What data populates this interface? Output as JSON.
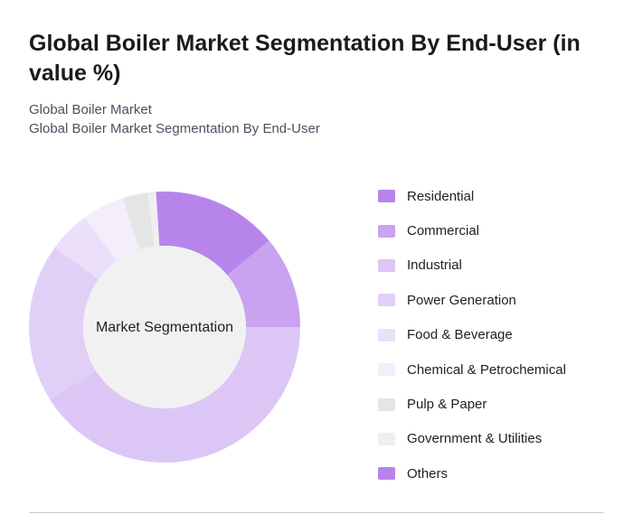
{
  "chart_data": {
    "type": "donut",
    "title": "Global Boiler Market Segmentation By End-User (in value %)",
    "subtitle": "Global Boiler Market",
    "subtitle2": "Global Boiler Market Segmentation By End-User",
    "center_label": "Market Segmentation",
    "categories": [
      "Residential",
      "Commercial",
      "Industrial",
      "Power Generation",
      "Food & Beverage",
      "Chemical & Petrochemical",
      "Pulp & Paper",
      "Government & Utilities",
      "Others"
    ],
    "values": [
      14,
      11,
      41,
      19,
      5,
      5,
      3,
      1,
      1
    ],
    "colors": [
      "#b784ec",
      "#c9a2f0",
      "#dcc6f6",
      "#e2cff8",
      "#ebdffa",
      "#f4edfc",
      "#e5e5e5",
      "#efefef",
      "#b784ec"
    ]
  }
}
